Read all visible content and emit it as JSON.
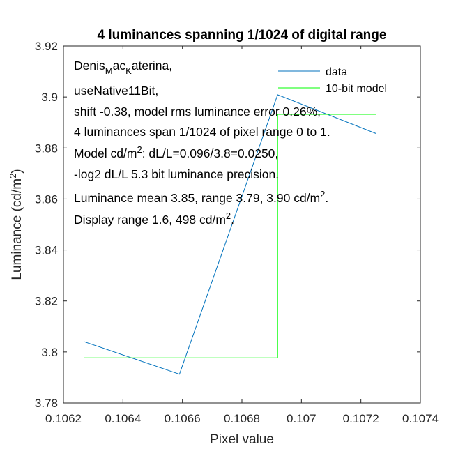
{
  "chart_data": {
    "type": "line",
    "title": "4 luminances spanning 1/1024 of digital range",
    "xlabel": "Pixel value",
    "ylabel_main": "Luminance (cd/m",
    "ylabel_sup": "2",
    "ylabel_end": ")",
    "xlim": [
      0.1062,
      0.1074
    ],
    "ylim": [
      3.78,
      3.92
    ],
    "xticks": [
      0.1062,
      0.1064,
      0.1066,
      0.1068,
      0.107,
      0.1072,
      0.1074
    ],
    "xtick_labels": [
      "0.1062",
      "0.1064",
      "0.1066",
      "0.1068",
      "0.107",
      "0.1072",
      "0.1074"
    ],
    "yticks": [
      3.78,
      3.8,
      3.82,
      3.84,
      3.86,
      3.88,
      3.9,
      3.92
    ],
    "ytick_labels": [
      "3.78",
      "3.8",
      "3.82",
      "3.84",
      "3.86",
      "3.88",
      "3.9",
      "3.92"
    ],
    "grid": false,
    "legend_placement": "top-right",
    "series": [
      {
        "name": "data",
        "color": "#0072bd",
        "x": [
          0.10627,
          0.10659,
          0.10692,
          0.10725
        ],
        "y": [
          3.804,
          3.7913,
          3.9009,
          3.8857
        ]
      },
      {
        "name": "10-bit model",
        "color": "#00ff00",
        "x": [
          0.10627,
          0.10692,
          0.10692,
          0.10725
        ],
        "y": [
          3.7977,
          3.7977,
          3.8932,
          3.8932
        ]
      }
    ],
    "annotation": {
      "line1_a": "Denis",
      "line1_sub1": "M",
      "line1_b": "ac",
      "line1_sub2": "K",
      "line1_c": "aterina,",
      "line2": "useNative11Bit,",
      "line3": "shift -0.38, model rms luminance error 0.26%,",
      "line4": "4 luminances span 1/1024 of pixel range 0 to 1.",
      "line5_a": "Model cd/m",
      "line5_sup": "2",
      "line5_b": ": dL/L=0.096/3.8=0.0250,",
      "line6": "-log2 dL/L 5.3 bit luminance precision.",
      "line7_a": "Luminance mean 3.85, range 3.79, 3.90 cd/m",
      "line7_sup": "2",
      "line7_b": ".",
      "line8_a": "Display range 1.6, 498 cd/m",
      "line8_sup": "2",
      "line8_b": "."
    }
  }
}
